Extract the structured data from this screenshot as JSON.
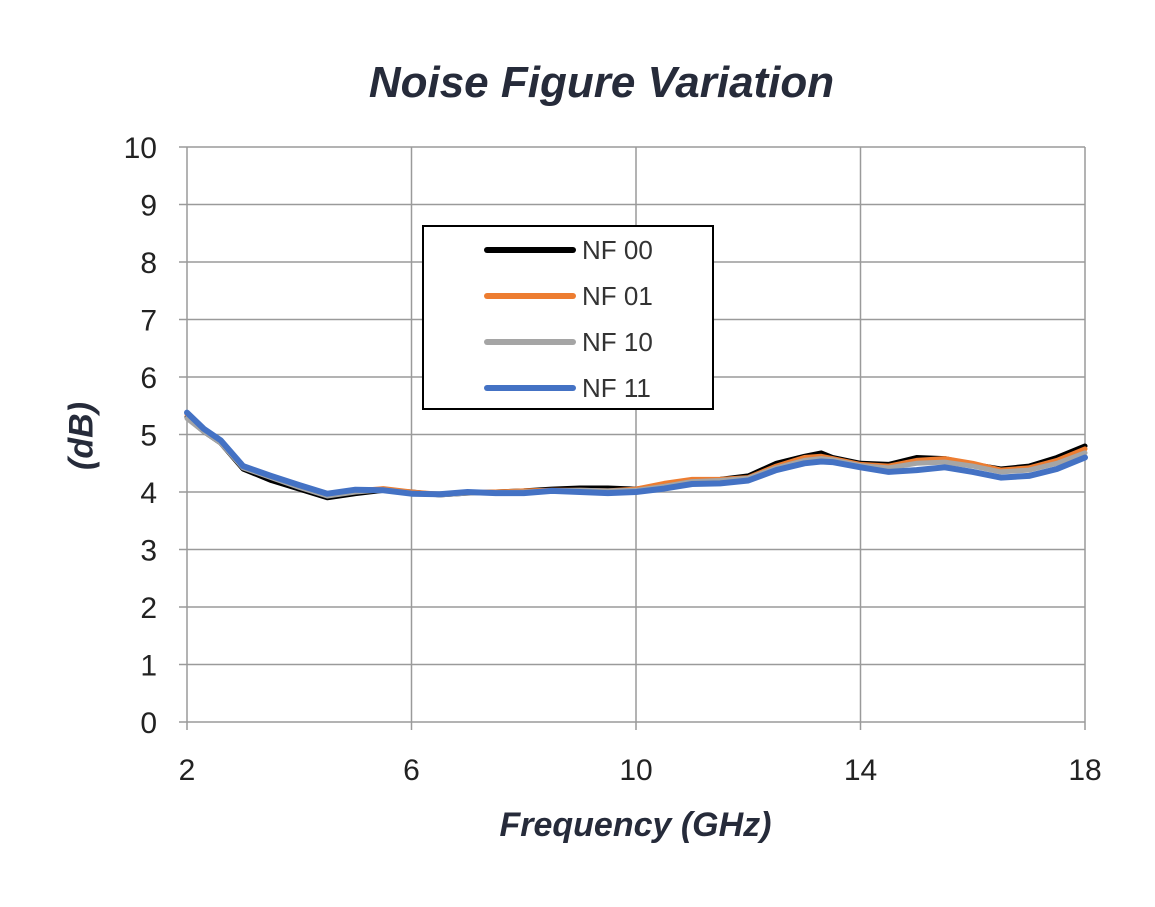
{
  "chart_data": {
    "type": "line",
    "title": "Noise Figure Variation",
    "xlabel": "Frequency (GHz)",
    "ylabel": "(dB)",
    "xlim": [
      2,
      18
    ],
    "ylim": [
      0,
      10
    ],
    "xticks": [
      2,
      6,
      10,
      14,
      18
    ],
    "yticks": [
      0,
      1,
      2,
      3,
      4,
      5,
      6,
      7,
      8,
      9,
      10
    ],
    "grid": true,
    "legend_position": "upper-center",
    "x": [
      2.0,
      2.3,
      2.6,
      3.0,
      3.5,
      4.0,
      4.5,
      5.0,
      5.5,
      6.0,
      6.5,
      7.0,
      7.5,
      8.0,
      8.5,
      9.0,
      9.5,
      10.0,
      10.5,
      11.0,
      11.5,
      12.0,
      12.5,
      13.0,
      13.3,
      13.5,
      14.0,
      14.5,
      15.0,
      15.5,
      16.0,
      16.5,
      17.0,
      17.5,
      18.0
    ],
    "series": [
      {
        "name": "NF 00",
        "color": "#000000",
        "values": [
          5.3,
          5.05,
          4.85,
          4.4,
          4.2,
          4.05,
          3.9,
          3.97,
          4.03,
          4.0,
          3.95,
          3.98,
          4.0,
          4.02,
          4.05,
          4.07,
          4.07,
          4.05,
          4.12,
          4.2,
          4.22,
          4.28,
          4.5,
          4.62,
          4.68,
          4.6,
          4.5,
          4.48,
          4.6,
          4.58,
          4.48,
          4.4,
          4.45,
          4.6,
          4.8
        ]
      },
      {
        "name": "NF 01",
        "color": "#ed7d31",
        "values": [
          5.35,
          5.1,
          4.88,
          4.43,
          4.27,
          4.1,
          3.95,
          4.02,
          4.06,
          4.0,
          3.96,
          3.99,
          4.0,
          4.02,
          4.03,
          4.03,
          4.02,
          4.05,
          4.15,
          4.22,
          4.22,
          4.25,
          4.45,
          4.6,
          4.62,
          4.58,
          4.48,
          4.45,
          4.55,
          4.58,
          4.5,
          4.38,
          4.42,
          4.55,
          4.75
        ]
      },
      {
        "name": "NF 10",
        "color": "#a5a5a5",
        "values": [
          5.28,
          5.05,
          4.85,
          4.42,
          4.25,
          4.08,
          3.93,
          4.0,
          4.04,
          3.98,
          3.95,
          3.98,
          3.99,
          4.0,
          4.02,
          4.03,
          4.02,
          4.03,
          4.1,
          4.18,
          4.2,
          4.24,
          4.42,
          4.55,
          4.58,
          4.56,
          4.46,
          4.42,
          4.5,
          4.52,
          4.45,
          4.35,
          4.38,
          4.5,
          4.68
        ]
      },
      {
        "name": "NF 11",
        "color": "#4472c4",
        "values": [
          5.38,
          5.1,
          4.9,
          4.45,
          4.28,
          4.12,
          3.97,
          4.04,
          4.03,
          3.97,
          3.96,
          4.0,
          3.98,
          3.98,
          4.02,
          4.0,
          3.98,
          4.0,
          4.06,
          4.14,
          4.15,
          4.2,
          4.38,
          4.5,
          4.53,
          4.52,
          4.43,
          4.35,
          4.38,
          4.43,
          4.35,
          4.25,
          4.28,
          4.4,
          4.6
        ]
      }
    ]
  }
}
